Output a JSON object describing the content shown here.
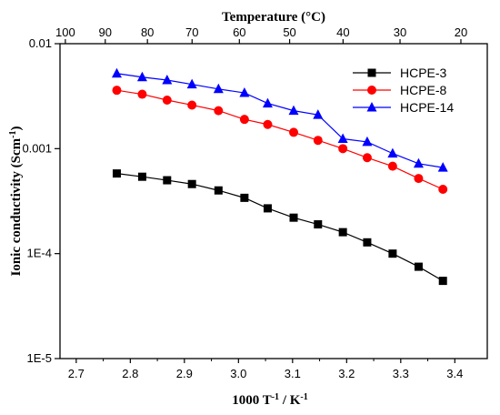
{
  "chart_data": {
    "type": "line",
    "xlabel": "1000 T",
    "xlabel_sup1": "-1",
    "xlabel_mid": " / K",
    "xlabel_sup2": "-1",
    "ylabel": "Ionic conductivity (Scm",
    "ylabel_sup": "-1",
    "ylabel_end": ")",
    "top_axis_label": "Temperature (°C)",
    "xlim": [
      2.67,
      3.46
    ],
    "ylim": [
      1e-05,
      0.01
    ],
    "yscale": "log",
    "x_ticks": [
      2.7,
      2.8,
      2.9,
      3.0,
      3.1,
      3.2,
      3.3,
      3.4
    ],
    "x_tick_labels": [
      "2.7",
      "2.8",
      "2.9",
      "3.0",
      "3.1",
      "3.2",
      "3.3",
      "3.4"
    ],
    "y_ticks": [
      1e-05,
      0.0001,
      0.001,
      0.01
    ],
    "y_tick_labels": [
      "1E-5",
      "1E-4",
      "0.001",
      "0.01"
    ],
    "top_ticks": [
      100,
      90,
      80,
      70,
      60,
      50,
      40,
      30,
      20
    ],
    "top_tick_labels": [
      "100",
      "90",
      "80",
      "70",
      "60",
      "50",
      "40",
      "30",
      "20"
    ],
    "x": [
      2.775,
      2.822,
      2.868,
      2.914,
      2.963,
      3.011,
      3.054,
      3.102,
      3.147,
      3.193,
      3.238,
      3.285,
      3.333,
      3.378
    ],
    "series": [
      {
        "name": "HCPE-3",
        "marker": "square",
        "color": "#000000",
        "values": [
          0.00058,
          0.00054,
          0.0005,
          0.00046,
          0.0004,
          0.00034,
          0.00027,
          0.00022,
          0.00019,
          0.00016,
          0.000128,
          0.0001,
          7.5e-05,
          5.5e-05
        ]
      },
      {
        "name": "HCPE-8",
        "marker": "circle",
        "color": "#ff0000",
        "values": [
          0.0036,
          0.0033,
          0.0029,
          0.0026,
          0.0023,
          0.0019,
          0.0017,
          0.00143,
          0.0012,
          0.001,
          0.00082,
          0.00068,
          0.00052,
          0.00041
        ]
      },
      {
        "name": "HCPE-14",
        "marker": "triangle",
        "color": "#0000ff",
        "values": [
          0.0052,
          0.0048,
          0.0045,
          0.0041,
          0.0037,
          0.0034,
          0.0027,
          0.0023,
          0.0021,
          0.00124,
          0.00116,
          0.0009,
          0.00072,
          0.00066
        ]
      }
    ],
    "legend_position": "top-right",
    "grid": false
  }
}
